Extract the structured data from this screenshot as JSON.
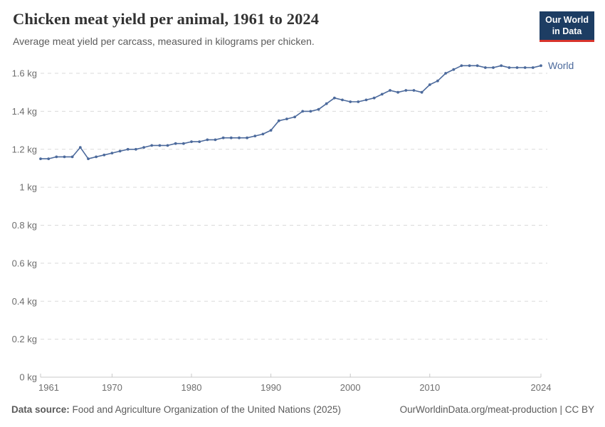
{
  "header": {
    "title": "Chicken meat yield per animal, 1961 to 2024",
    "subtitle": "Average meat yield per carcass, measured in kilograms per chicken."
  },
  "logo": {
    "line1": "Our World",
    "line2": "in Data",
    "bg_color": "#1d3d63",
    "accent_color": "#d8342c",
    "text_color": "#ffffff"
  },
  "chart_data": {
    "type": "line",
    "title": "Chicken meat yield per animal, 1961 to 2024",
    "xlabel": "",
    "ylabel": "",
    "xlim": [
      1961,
      2024
    ],
    "ylim": [
      0,
      1.6
    ],
    "x_ticks": [
      1961,
      1970,
      1980,
      1990,
      2000,
      2010,
      2024
    ],
    "y_ticks": [
      0,
      0.2,
      0.4,
      0.6,
      0.8,
      1,
      1.2,
      1.4,
      1.6
    ],
    "y_tick_unit": " kg",
    "grid": "horizontal-dashed",
    "grid_color": "#dadada",
    "axis_color": "#c8c8c8",
    "tick_label_color": "#6e6e6e",
    "legend_position": "end-of-line-label",
    "series": [
      {
        "name": "World",
        "color": "#4C6A9C",
        "x": [
          1961,
          1962,
          1963,
          1964,
          1965,
          1966,
          1967,
          1968,
          1969,
          1970,
          1971,
          1972,
          1973,
          1974,
          1975,
          1976,
          1977,
          1978,
          1979,
          1980,
          1981,
          1982,
          1983,
          1984,
          1985,
          1986,
          1987,
          1988,
          1989,
          1990,
          1991,
          1992,
          1993,
          1994,
          1995,
          1996,
          1997,
          1998,
          1999,
          2000,
          2001,
          2002,
          2003,
          2004,
          2005,
          2006,
          2007,
          2008,
          2009,
          2010,
          2011,
          2012,
          2013,
          2014,
          2015,
          2016,
          2017,
          2018,
          2019,
          2020,
          2021,
          2022,
          2023,
          2024
        ],
        "values": [
          1.15,
          1.15,
          1.16,
          1.16,
          1.16,
          1.21,
          1.15,
          1.16,
          1.17,
          1.18,
          1.19,
          1.2,
          1.2,
          1.21,
          1.22,
          1.22,
          1.22,
          1.23,
          1.23,
          1.24,
          1.24,
          1.25,
          1.25,
          1.26,
          1.26,
          1.26,
          1.26,
          1.27,
          1.28,
          1.3,
          1.35,
          1.36,
          1.37,
          1.4,
          1.4,
          1.41,
          1.44,
          1.47,
          1.46,
          1.45,
          1.45,
          1.46,
          1.47,
          1.49,
          1.51,
          1.5,
          1.51,
          1.51,
          1.5,
          1.54,
          1.56,
          1.6,
          1.62,
          1.64,
          1.64,
          1.64,
          1.63,
          1.63,
          1.64,
          1.63,
          1.63,
          1.63,
          1.63,
          1.64
        ]
      }
    ]
  },
  "footer": {
    "source_label": "Data source:",
    "source_text": " Food and Agriculture Organization of the United Nations (2025)",
    "link_text": "OurWorldinData.org/meat-production | CC BY"
  }
}
